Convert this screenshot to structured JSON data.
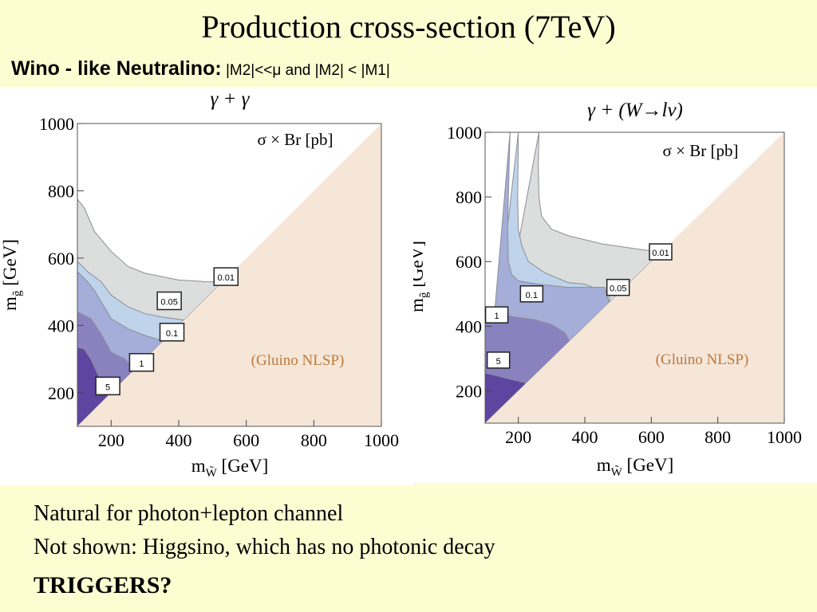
{
  "slide": {
    "title": "Production cross-section (7TeV)",
    "subtitle_bold": "Wino - like Neutralino:",
    "subtitle_rest": " |M2|<<μ and |M2| <  |M1|",
    "bullets": [
      "Natural for photon+lepton channel",
      "Not shown: Higgsino, which has no photonic decay"
    ],
    "footer": "TRIGGERS?"
  },
  "colors": {
    "background": "#fdfdd2",
    "nlsp_region": "#f5e6d8",
    "c001": "#dcdddd",
    "c005": "#bfd4ea",
    "c01": "#a5add9",
    "c1": "#8a81bf",
    "c5": "#5d45a0",
    "nlsp_text": "#c07838"
  },
  "chart_data": [
    {
      "type": "contour",
      "title": "γ + γ",
      "annotation": "σ × Br [pb]",
      "region_label": "(Gluino NLSP)",
      "xlabel_main": "m",
      "xlabel_sub": "W̃",
      "xlabel_unit": " [GeV]",
      "ylabel_main": "m",
      "ylabel_sub": "g̃",
      "ylabel_unit": " [GeV]",
      "xlim": [
        100,
        1000
      ],
      "ylim": [
        100,
        1000
      ],
      "xticks": [
        200,
        400,
        600,
        800,
        1000
      ],
      "yticks": [
        200,
        400,
        600,
        800,
        1000
      ],
      "contours": [
        {
          "level": "0.01",
          "color_key": "c001",
          "points": [
            [
              100,
              775
            ],
            [
              120,
              750
            ],
            [
              150,
              680
            ],
            [
              200,
              620
            ],
            [
              250,
              575
            ],
            [
              300,
              555
            ],
            [
              400,
              535
            ],
            [
              480,
              530
            ],
            [
              529,
              529
            ]
          ]
        },
        {
          "level": "0.05",
          "color_key": "c005",
          "points": [
            [
              100,
              590
            ],
            [
              130,
              560
            ],
            [
              170,
              530
            ],
            [
              200,
              490
            ],
            [
              250,
              455
            ],
            [
              300,
              435
            ],
            [
              350,
              425
            ],
            [
              416,
              416
            ]
          ]
        },
        {
          "level": "0.1",
          "color_key": "c01",
          "points": [
            [
              100,
              560
            ],
            [
              130,
              530
            ],
            [
              150,
              505
            ],
            [
              200,
              420
            ],
            [
              250,
              390
            ],
            [
              300,
              370
            ],
            [
              350,
              355
            ],
            [
              365,
              355
            ]
          ]
        },
        {
          "level": "1",
          "color_key": "c1",
          "points": [
            [
              100,
              440
            ],
            [
              140,
              420
            ],
            [
              170,
              375
            ],
            [
              200,
              320
            ],
            [
              240,
              300
            ],
            [
              270,
              270
            ]
          ]
        },
        {
          "level": "5",
          "color_key": "c5",
          "points": [
            [
              100,
              335
            ],
            [
              120,
              330
            ],
            [
              140,
              300
            ],
            [
              160,
              255
            ],
            [
              180,
              225
            ],
            [
              195,
              195
            ]
          ]
        }
      ],
      "labels": [
        {
          "text": "0.01",
          "x": 540,
          "y": 545
        },
        {
          "text": "0.05",
          "x": 372,
          "y": 473
        },
        {
          "text": "0.1",
          "x": 380,
          "y": 380
        },
        {
          "text": "1",
          "x": 290,
          "y": 290
        },
        {
          "text": "5",
          "x": 190,
          "y": 220
        }
      ],
      "diagonal": "m_gluino = m_wino"
    },
    {
      "type": "contour",
      "title": "γ + (W→lν)",
      "annotation": "σ × Br [pb]",
      "region_label": "(Gluino NLSP)",
      "xlabel_main": "m",
      "xlabel_sub": "W̃",
      "xlabel_unit": " [GeV]",
      "ylabel_main": "m",
      "ylabel_sub": "g̃",
      "ylabel_unit": " [GeV]",
      "xlim": [
        100,
        1000
      ],
      "ylim": [
        100,
        1000
      ],
      "xticks": [
        200,
        400,
        600,
        800,
        1000
      ],
      "yticks": [
        200,
        400,
        600,
        800,
        1000
      ],
      "contours": [
        {
          "level": "0.01",
          "color_key": "c001",
          "points": [
            [
              262,
              1000
            ],
            [
              260,
              900
            ],
            [
              262,
              800
            ],
            [
              270,
              740
            ],
            [
              300,
              700
            ],
            [
              350,
              680
            ],
            [
              450,
              655
            ],
            [
              550,
              640
            ],
            [
              620,
              630
            ],
            [
              630,
              630
            ]
          ]
        },
        {
          "level": "0.05",
          "color_key": "c005",
          "points": [
            [
              200,
              1000
            ],
            [
              198,
              800
            ],
            [
              200,
              700
            ],
            [
              210,
              650
            ],
            [
              230,
              600
            ],
            [
              280,
              565
            ],
            [
              350,
              535
            ],
            [
              400,
              530
            ],
            [
              474,
              500
            ]
          ]
        },
        {
          "level": "0.1",
          "color_key": "c01",
          "points": [
            [
              175,
              1000
            ],
            [
              170,
              800
            ],
            [
              168,
              700
            ],
            [
              170,
              600
            ],
            [
              180,
              560
            ],
            [
              200,
              540
            ],
            [
              260,
              530
            ],
            [
              350,
              520
            ],
            [
              460,
              520
            ],
            [
              473,
              473
            ]
          ]
        },
        {
          "level": "1",
          "color_key": "c1",
          "points": [
            [
              100,
              440
            ],
            [
              130,
              440
            ],
            [
              180,
              430
            ],
            [
              250,
              420
            ],
            [
              300,
              405
            ],
            [
              340,
              380
            ],
            [
              354,
              354
            ]
          ]
        },
        {
          "level": "5",
          "color_key": "c5",
          "points": [
            [
              100,
              255
            ],
            [
              140,
              245
            ],
            [
              180,
              235
            ],
            [
              220,
              225
            ],
            [
              259,
              210
            ],
            [
              270,
              270
            ]
          ]
        }
      ],
      "labels": [
        {
          "text": "0.01",
          "x": 628,
          "y": 630
        },
        {
          "text": "0.05",
          "x": 500,
          "y": 520
        },
        {
          "text": "0.1",
          "x": 240,
          "y": 500
        },
        {
          "text": "1",
          "x": 135,
          "y": 435
        },
        {
          "text": "5",
          "x": 140,
          "y": 295
        }
      ],
      "diagonal": "m_gluino = m_wino"
    }
  ]
}
